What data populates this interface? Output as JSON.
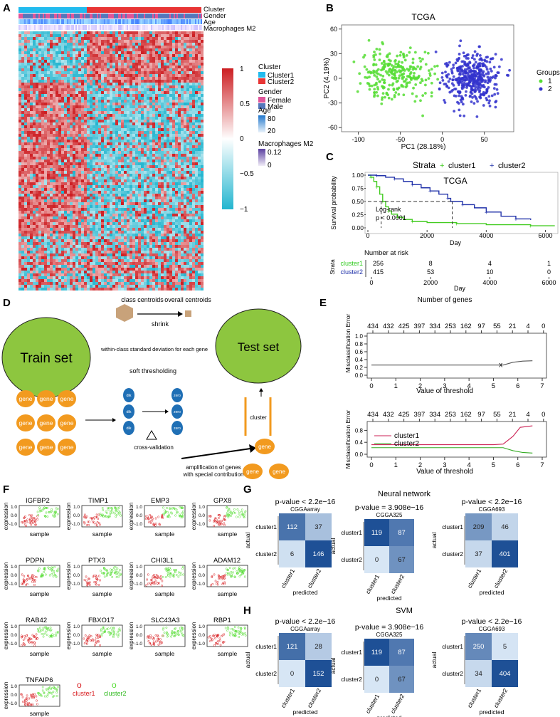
{
  "panels": {
    "a": "A",
    "b": "B",
    "c": "C",
    "d": "D",
    "e": "E",
    "f": "F",
    "g": "G",
    "h": "H"
  },
  "colors": {
    "red": "#d7191c",
    "blue": "#2c7bb6",
    "green": "#55dd33",
    "navy": "#2233bb",
    "cyan": "#22bbdd",
    "olive": "#8fc83c",
    "orange": "#f29a1f",
    "tan": "#c8a27a",
    "darkblue": "#2e5c99"
  },
  "panelA": {
    "tracks": [
      "Cluster",
      "Gender",
      "Age",
      "Macrophages M2"
    ],
    "legend": {
      "cluster_title": "Cluster",
      "cluster_items": [
        "Cluster1",
        "Cluster2"
      ],
      "gender_title": "Gender",
      "gender_items": [
        "Female",
        "Male"
      ],
      "age_title": "Age",
      "age_ticks": [
        "80",
        "20"
      ],
      "mac_title": "Macrophages M2",
      "mac_ticks": [
        "0.12",
        "0"
      ]
    },
    "colorbar_ticks": [
      "1",
      "0.5",
      "0",
      "−0.5",
      "−1"
    ]
  },
  "chart_data": [
    {
      "id": "B",
      "type": "scatter",
      "title": "TCGA",
      "xlabel": "PC1 (28.18%)",
      "ylabel": "PC2 (4.19%)",
      "xlim": [
        -120,
        85
      ],
      "ylim": [
        -65,
        65
      ],
      "xticks": [
        "-100",
        "-50",
        "0",
        "50"
      ],
      "yticks": [
        "60",
        "30",
        "0",
        "-30",
        "-60"
      ],
      "legend_title": "Groups",
      "legend": [
        "1",
        "2"
      ],
      "series": [
        {
          "name": "1",
          "color": "#55dd33",
          "center": [
            -55,
            5
          ],
          "spread": [
            28,
            22
          ],
          "n": 260
        },
        {
          "name": "2",
          "color": "#3333cc",
          "center": [
            35,
            0
          ],
          "spread": [
            22,
            22
          ],
          "n": 415
        }
      ]
    },
    {
      "id": "C",
      "type": "line",
      "title": "TCGA",
      "legend_title": "Strata",
      "legend": [
        "cluster1",
        "cluster2"
      ],
      "xlabel": "Day",
      "ylabel": "Survival probability",
      "xlim": [
        0,
        6300
      ],
      "ylim": [
        0,
        1
      ],
      "xticks": [
        "0",
        "2000",
        "4000",
        "6000"
      ],
      "yticks": [
        "1.00",
        "0.75",
        "0.50",
        "0.25",
        "0.00"
      ],
      "annotation": [
        "Log-rank",
        "p < 0.0001"
      ],
      "series": [
        {
          "name": "cluster1",
          "color": "#44cc22",
          "points": [
            [
              0,
              1
            ],
            [
              100,
              0.96
            ],
            [
              200,
              0.88
            ],
            [
              300,
              0.78
            ],
            [
              400,
              0.64
            ],
            [
              500,
              0.5
            ],
            [
              600,
              0.4
            ],
            [
              700,
              0.32
            ],
            [
              800,
              0.26
            ],
            [
              1000,
              0.2
            ],
            [
              1200,
              0.16
            ],
            [
              1500,
              0.12
            ],
            [
              2000,
              0.1
            ],
            [
              3000,
              0.08
            ],
            [
              4000,
              0.06
            ],
            [
              5500,
              0.04
            ],
            [
              6300,
              0.03
            ]
          ]
        },
        {
          "name": "cluster2",
          "color": "#2233aa",
          "points": [
            [
              0,
              1
            ],
            [
              300,
              0.99
            ],
            [
              600,
              0.96
            ],
            [
              900,
              0.93
            ],
            [
              1200,
              0.88
            ],
            [
              1500,
              0.82
            ],
            [
              1800,
              0.76
            ],
            [
              2100,
              0.7
            ],
            [
              2400,
              0.64
            ],
            [
              2700,
              0.56
            ],
            [
              2800,
              0.5
            ],
            [
              3200,
              0.44
            ],
            [
              3600,
              0.38
            ],
            [
              4000,
              0.3
            ],
            [
              4500,
              0.22
            ],
            [
              5000,
              0.17
            ],
            [
              5500,
              0.15
            ]
          ]
        }
      ],
      "median_lines": [
        {
          "x": 450,
          "y": 0.5
        },
        {
          "x": 2850,
          "y": 0.5
        }
      ],
      "risk_table": {
        "title": "Number at risk",
        "row_label": "Strata",
        "xlabel": "Day",
        "rows": [
          {
            "name": "cluster1",
            "values": [
              "256",
              "8",
              "4",
              "1"
            ]
          },
          {
            "name": "cluster2",
            "values": [
              "415",
              "53",
              "10",
              "0"
            ]
          }
        ],
        "xticks": [
          "0",
          "2000",
          "4000",
          "6000"
        ]
      }
    },
    {
      "id": "E-top",
      "type": "line",
      "top_label": "Number of genes",
      "top_ticks": [
        "434",
        "432",
        "425",
        "397",
        "334",
        "253",
        "162",
        "97",
        "55",
        "21",
        "4",
        "0"
      ],
      "xlabel": "Value of threshold",
      "ylabel": "Misclassification Error",
      "xlim": [
        -0.3,
        7
      ],
      "ylim": [
        0,
        1
      ],
      "xticks": [
        "0",
        "1",
        "2",
        "3",
        "4",
        "5",
        "6",
        "7"
      ],
      "yticks": [
        "0.0",
        "0.2",
        "0.4",
        "0.6",
        "0.8",
        "1.0"
      ],
      "marker": "x",
      "series": [
        {
          "name": "overall",
          "color": "#555555",
          "points": [
            [
              0,
              0.26
            ],
            [
              1,
              0.26
            ],
            [
              2,
              0.26
            ],
            [
              3,
              0.26
            ],
            [
              4,
              0.26
            ],
            [
              5,
              0.26
            ],
            [
              5.4,
              0.26
            ],
            [
              5.8,
              0.33
            ],
            [
              6.2,
              0.36
            ],
            [
              6.6,
              0.37
            ]
          ]
        }
      ]
    },
    {
      "id": "E-bottom",
      "type": "line",
      "top_ticks": [
        "434",
        "432",
        "425",
        "397",
        "334",
        "253",
        "162",
        "97",
        "55",
        "21",
        "4",
        "0"
      ],
      "xlabel": "Value of threshold",
      "ylabel": "Misclassification Error",
      "xlim": [
        -0.3,
        7
      ],
      "ylim": [
        0,
        1
      ],
      "xticks": [
        "0",
        "1",
        "2",
        "3",
        "4",
        "5",
        "6",
        "7"
      ],
      "yticks": [
        "0.0",
        "0.4",
        "0.8"
      ],
      "legend": [
        "cluster1",
        "cluster2"
      ],
      "series": [
        {
          "name": "cluster1",
          "color": "#cc2255",
          "points": [
            [
              0,
              0.32
            ],
            [
              2,
              0.32
            ],
            [
              4,
              0.32
            ],
            [
              5,
              0.32
            ],
            [
              5.4,
              0.34
            ],
            [
              5.8,
              0.6
            ],
            [
              6.1,
              0.9
            ],
            [
              6.6,
              0.95
            ]
          ]
        },
        {
          "name": "cluster2",
          "color": "#33aa22",
          "points": [
            [
              0,
              0.22
            ],
            [
              2,
              0.22
            ],
            [
              4,
              0.22
            ],
            [
              5,
              0.22
            ],
            [
              5.4,
              0.22
            ],
            [
              5.8,
              0.12
            ],
            [
              6.2,
              0.06
            ],
            [
              6.6,
              0.04
            ]
          ]
        }
      ]
    },
    {
      "id": "G-1",
      "type": "heatmap",
      "title": "p-value < 2.2e−16",
      "subtitle": "CGGAarray",
      "row_labels": [
        "cluster1",
        "cluster2"
      ],
      "col_labels": [
        "cluster1",
        "cluster2"
      ],
      "xlabel": "predicted",
      "ylabel": "actual",
      "values": [
        [
          112,
          37
        ],
        [
          6,
          146
        ]
      ]
    },
    {
      "id": "G-2",
      "type": "heatmap",
      "method": "Neural network",
      "title": "p-value = 3.908e−16",
      "subtitle": "CGGA325",
      "row_labels": [
        "cluster1",
        "cluster2"
      ],
      "col_labels": [
        "cluster1",
        "cluster2"
      ],
      "xlabel": "predicted",
      "ylabel": "actual",
      "values": [
        [
          119,
          87
        ],
        [
          0,
          67
        ]
      ]
    },
    {
      "id": "G-3",
      "type": "heatmap",
      "title": "p-value < 2.2e−16",
      "subtitle": "CGGA693",
      "row_labels": [
        "cluster1",
        "cluster2"
      ],
      "col_labels": [
        "cluster1",
        "cluster2"
      ],
      "xlabel": "predicted",
      "ylabel": "actual",
      "values": [
        [
          209,
          46
        ],
        [
          37,
          401
        ]
      ]
    },
    {
      "id": "H-1",
      "type": "heatmap",
      "title": "p-value < 2.2e−16",
      "subtitle": "CGGAarray",
      "row_labels": [
        "cluster1",
        "cluster2"
      ],
      "col_labels": [
        "cluster1",
        "cluster2"
      ],
      "xlabel": "predicted",
      "ylabel": "actual",
      "values": [
        [
          121,
          28
        ],
        [
          0,
          152
        ]
      ]
    },
    {
      "id": "H-2",
      "type": "heatmap",
      "method": "SVM",
      "title": "p-value = 3.908e−16",
      "subtitle": "CGGA325",
      "row_labels": [
        "cluster1",
        "cluster2"
      ],
      "col_labels": [
        "cluster1",
        "cluster2"
      ],
      "xlabel": "predicted",
      "ylabel": "actual",
      "values": [
        [
          119,
          87
        ],
        [
          0,
          67
        ]
      ]
    },
    {
      "id": "H-3",
      "type": "heatmap",
      "title": "p-value < 2.2e−16",
      "subtitle": "CGGA693",
      "row_labels": [
        "cluster1",
        "cluster2"
      ],
      "col_labels": [
        "cluster1",
        "cluster2"
      ],
      "xlabel": "predicted",
      "ylabel": "actual",
      "values": [
        [
          250,
          5
        ],
        [
          34,
          404
        ]
      ]
    }
  ],
  "panelD": {
    "train": "Train set",
    "test": "Test set",
    "class_centroids": "class centroids",
    "overall_centroids": "overall centroids",
    "shrink": "shrink",
    "within": "within-class standard deviation for each gene",
    "soft": "soft thresholding",
    "gene": "gene",
    "dik": "dik",
    "zero": "zero",
    "cv": "cross-validation",
    "cluster": "cluster",
    "amp1": "amplification of genes",
    "amp2": "with special contribution"
  },
  "panelF": {
    "genes": [
      "IGFBP2",
      "TIMP1",
      "EMP3",
      "GPX8",
      "PDPN",
      "PTX3",
      "CHI3L1",
      "ADAM12",
      "RAB42",
      "FBXO17",
      "SLC43A3",
      "RBP1",
      "TNFAIP6"
    ],
    "ylabel": "expression",
    "xlabel": "sample",
    "yticks": [
      "1.0",
      "0.0",
      "-1.0"
    ],
    "legend": [
      "cluster1",
      "cluster2"
    ]
  }
}
